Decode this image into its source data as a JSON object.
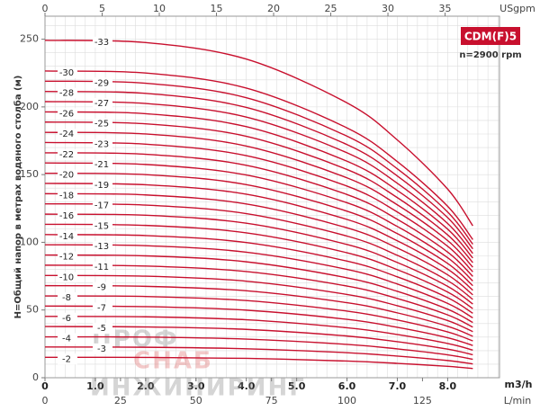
{
  "chart_data": {
    "type": "line",
    "title": "CDM(F)5",
    "subtitle": "n=2900 rpm",
    "y_label": "H=Общий напор в метрах водяного столба (м)",
    "x_label": "m3/h",
    "x2_label": "L/min",
    "x3_label": "USgpm",
    "watermark": [
      "ПРОФ",
      "СНАБ",
      "ИНЖИНИРИНГ"
    ],
    "x": [
      0,
      2,
      4,
      6,
      7,
      8,
      8.5
    ],
    "xlim": [
      0,
      9.03
    ],
    "xticks": [
      0,
      {
        "value": 1,
        "label": "1.0"
      },
      {
        "value": 2,
        "label": "2.0"
      },
      {
        "value": 3,
        "label": "3.0"
      },
      {
        "value": 4,
        "label": "4.0"
      },
      {
        "value": 5,
        "label": "5.0"
      },
      {
        "value": 6,
        "label": "6.0"
      },
      {
        "value": 7,
        "label": "7.0"
      },
      {
        "value": 8,
        "label": "8.0"
      }
    ],
    "x2lim": [
      0,
      150.5
    ],
    "x2ticks": [
      0,
      25,
      50,
      75,
      100,
      125
    ],
    "x3lim": [
      0,
      39.76
    ],
    "x3ticks": [
      0,
      5,
      10,
      15,
      20,
      25,
      30,
      35
    ],
    "ylim": [
      0,
      267
    ],
    "yticks": [
      0,
      50,
      100,
      150,
      200,
      250
    ],
    "grid": true,
    "minor_grid": {
      "x": 0.2,
      "y": 10
    },
    "color": "#c8102e",
    "series": [
      {
        "name": "-2",
        "values": [
          15.1,
          15,
          14.3,
          12.3,
          10.6,
          8.4,
          6.8
        ]
      },
      {
        "name": "-3",
        "values": [
          22.7,
          22.5,
          21.4,
          18.5,
          16,
          12.7,
          10.2
        ]
      },
      {
        "name": "-4",
        "values": [
          30.2,
          30,
          28.5,
          24.6,
          21.3,
          16.9,
          13.6
        ]
      },
      {
        "name": "-5",
        "values": [
          37.8,
          37.5,
          35.7,
          30.8,
          26.6,
          21.1,
          17
        ]
      },
      {
        "name": "-6",
        "values": [
          45.3,
          45,
          42.8,
          36.9,
          31.9,
          25.3,
          20.4
        ]
      },
      {
        "name": "-7",
        "values": [
          52.9,
          52.5,
          49.9,
          43.1,
          37.2,
          29.5,
          23.8
        ]
      },
      {
        "name": "-8",
        "values": [
          60.4,
          60,
          57,
          49.2,
          42.6,
          33.8,
          27.2
        ]
      },
      {
        "name": "-9",
        "values": [
          68,
          67.5,
          64.2,
          55.4,
          47.9,
          38,
          30.6
        ]
      },
      {
        "name": "-10",
        "values": [
          75.5,
          75,
          71.3,
          61.5,
          53.2,
          42.2,
          34
        ]
      },
      {
        "name": "-11",
        "values": [
          83.1,
          82.5,
          78.4,
          67.7,
          58.5,
          46.4,
          37.4
        ]
      },
      {
        "name": "-12",
        "values": [
          90.6,
          90,
          85.6,
          73.8,
          63.8,
          50.6,
          40.8
        ]
      },
      {
        "name": "-13",
        "values": [
          98.2,
          97.5,
          92.7,
          80,
          69.2,
          54.9,
          44.2
        ]
      },
      {
        "name": "-14",
        "values": [
          105.7,
          105,
          99.8,
          86.1,
          74.5,
          59.1,
          47.6
        ]
      },
      {
        "name": "-15",
        "values": [
          113.3,
          112.5,
          107,
          92.3,
          79.8,
          63.3,
          51
        ]
      },
      {
        "name": "-16",
        "values": [
          120.8,
          120,
          114.1,
          98.4,
          85.1,
          67.5,
          54.4
        ]
      },
      {
        "name": "-17",
        "values": [
          128.4,
          127.5,
          121.2,
          104.6,
          90.4,
          71.7,
          57.8
        ]
      },
      {
        "name": "-18",
        "values": [
          135.9,
          135,
          128.3,
          110.7,
          95.8,
          76,
          61.2
        ]
      },
      {
        "name": "-19",
        "values": [
          143.5,
          142.5,
          135.5,
          116.9,
          101.1,
          80.2,
          64.6
        ]
      },
      {
        "name": "-20",
        "values": [
          151,
          150,
          142.6,
          123,
          106.4,
          84.4,
          68
        ]
      },
      {
        "name": "-21",
        "values": [
          158.6,
          157.5,
          149.7,
          129.2,
          111.7,
          88.6,
          71.4
        ]
      },
      {
        "name": "-22",
        "values": [
          166.1,
          165,
          156.9,
          135.3,
          117,
          92.8,
          74.8
        ]
      },
      {
        "name": "-23",
        "values": [
          173.7,
          172.5,
          164,
          141.5,
          122.4,
          97.1,
          78.2
        ]
      },
      {
        "name": "-24",
        "values": [
          181.2,
          180,
          171.1,
          147.6,
          127.7,
          101.3,
          81.6
        ]
      },
      {
        "name": "-25",
        "values": [
          188.8,
          187.5,
          178.3,
          153.8,
          133,
          105.5,
          85
        ]
      },
      {
        "name": "-26",
        "values": [
          196.3,
          195,
          185.4,
          159.9,
          138.3,
          109.7,
          88.4
        ]
      },
      {
        "name": "-27",
        "values": [
          203.9,
          202.5,
          192.5,
          166.1,
          143.6,
          113.9,
          91.8
        ]
      },
      {
        "name": "-28",
        "values": [
          211.4,
          210,
          199.6,
          172.2,
          149,
          118.2,
          95.2
        ]
      },
      {
        "name": "-29",
        "values": [
          219,
          217.5,
          206.8,
          178.4,
          154.3,
          122.4,
          98.6
        ]
      },
      {
        "name": "-30",
        "values": [
          226.5,
          225,
          213.9,
          184.5,
          159.6,
          126.6,
          102
        ]
      },
      {
        "name": "-33",
        "values": [
          249.2,
          247.5,
          235.3,
          203,
          175.6,
          139.3,
          112.2
        ]
      }
    ]
  }
}
